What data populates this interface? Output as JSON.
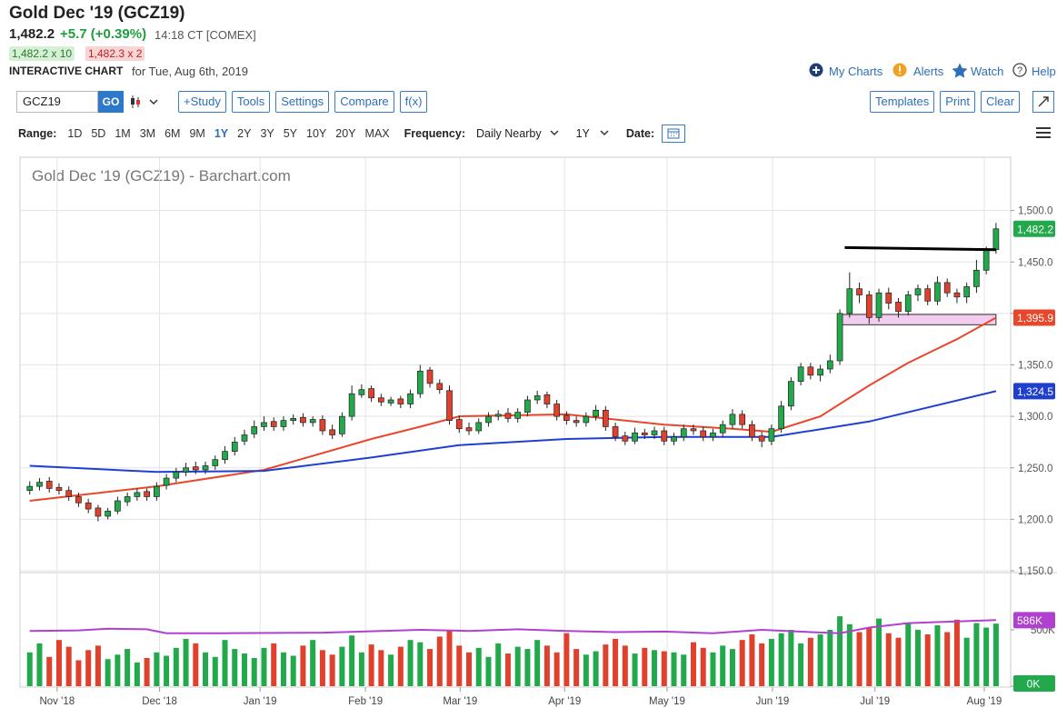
{
  "header": {
    "title": "Gold Dec '19 (GCZ19)",
    "last": "1,482.2",
    "change": "+5.7 (+0.39%)",
    "time": "14:18 CT [COMEX]",
    "bid": "1,482.2 x 10",
    "ask": "1,482.3 x 2",
    "chart_label": "INTERACTIVE CHART",
    "date": "for Tue, Aug 6th, 2019",
    "links": [
      "My Charts",
      "Alerts",
      "Watch",
      "Help"
    ]
  },
  "toolbar": {
    "symbol": "GCZ19",
    "go": "GO",
    "buttons": [
      "+Study",
      "Tools",
      "Settings",
      "Compare",
      "f(x)"
    ],
    "right_buttons": [
      "Templates",
      "Print",
      "Clear"
    ]
  },
  "range_bar": {
    "range_label": "Range:",
    "ranges": [
      "1D",
      "5D",
      "1M",
      "3M",
      "6M",
      "9M",
      "1Y",
      "2Y",
      "3Y",
      "5Y",
      "10Y",
      "20Y",
      "MAX"
    ],
    "active_range": 6,
    "frequency_label": "Frequency:",
    "frequency": "Daily Nearby",
    "period": "1Y",
    "date_label": "Date:"
  },
  "chart_data": {
    "type": "candlestick",
    "title": "Gold Dec '19 (GCZ19) - Barchart.com",
    "up_color": "#22a94b",
    "down_color": "#e0412d",
    "xlim": [
      -1,
      100.5
    ],
    "xticks": [
      {
        "value": 2.8,
        "label": "Nov '18"
      },
      {
        "value": 13.3,
        "label": "Dec '18"
      },
      {
        "value": 23.6,
        "label": "Jan '19"
      },
      {
        "value": 34.4,
        "label": "Feb '19"
      },
      {
        "value": 44.1,
        "label": "Mar '19"
      },
      {
        "value": 54.8,
        "label": "Apr '19"
      },
      {
        "value": 65.3,
        "label": "May '19"
      },
      {
        "value": 76.1,
        "label": "Jun '19"
      },
      {
        "value": 86.6,
        "label": "Jul '19"
      },
      {
        "value": 97.8,
        "label": "Aug '19"
      }
    ],
    "ylim": [
      1150,
      1550
    ],
    "yticks": [
      {
        "value": 1150,
        "label": "1,150.0"
      },
      {
        "value": 1200,
        "label": "1,200.0"
      },
      {
        "value": 1250,
        "label": "1,250.0"
      },
      {
        "value": 1300,
        "label": "1,300.0"
      },
      {
        "value": 1350,
        "label": "1,350.0"
      },
      {
        "value": 1400,
        "label": "1,400.0"
      },
      {
        "value": 1450,
        "label": "1,450.0"
      },
      {
        "value": 1500,
        "label": "1,500.0"
      }
    ],
    "grid": true,
    "open": [
      1228,
      1232,
      1237,
      1231,
      1228,
      1222,
      1216,
      1211,
      1203,
      1208,
      1217,
      1222,
      1227,
      1222,
      1233,
      1240,
      1246,
      1251,
      1248,
      1252,
      1258,
      1266,
      1276,
      1283,
      1290,
      1295,
      1290,
      1296,
      1299,
      1294,
      1297,
      1287,
      1283,
      1300,
      1321,
      1327,
      1318,
      1313,
      1317,
      1312,
      1322,
      1345,
      1332,
      1325,
      1297,
      1289,
      1286,
      1294,
      1300,
      1303,
      1298,
      1304,
      1316,
      1321,
      1312,
      1301,
      1296,
      1294,
      1300,
      1306,
      1290,
      1281,
      1276,
      1284,
      1282,
      1286,
      1276,
      1280,
      1288,
      1286,
      1280,
      1284,
      1292,
      1302,
      1292,
      1281,
      1276,
      1288,
      1310,
      1334,
      1348,
      1340,
      1346,
      1354,
      1400,
      1424,
      1418,
      1396,
      1420,
      1411,
      1402,
      1418,
      1424,
      1412,
      1430,
      1420,
      1416,
      1426,
      1442,
      1462
    ],
    "high": [
      1237,
      1240,
      1241,
      1235,
      1232,
      1226,
      1220,
      1214,
      1211,
      1222,
      1226,
      1230,
      1230,
      1236,
      1244,
      1250,
      1255,
      1256,
      1256,
      1262,
      1271,
      1280,
      1287,
      1296,
      1300,
      1299,
      1300,
      1302,
      1303,
      1300,
      1301,
      1292,
      1304,
      1330,
      1331,
      1330,
      1322,
      1319,
      1320,
      1326,
      1350,
      1348,
      1336,
      1330,
      1301,
      1294,
      1298,
      1304,
      1306,
      1308,
      1308,
      1320,
      1325,
      1324,
      1316,
      1305,
      1300,
      1304,
      1311,
      1310,
      1294,
      1285,
      1289,
      1288,
      1290,
      1290,
      1284,
      1292,
      1292,
      1290,
      1288,
      1296,
      1307,
      1306,
      1296,
      1285,
      1292,
      1315,
      1338,
      1352,
      1352,
      1350,
      1360,
      1404,
      1440,
      1430,
      1422,
      1424,
      1425,
      1415,
      1422,
      1428,
      1428,
      1436,
      1434,
      1424,
      1430,
      1452,
      1465,
      1488
    ],
    "low": [
      1224,
      1228,
      1226,
      1224,
      1218,
      1212,
      1206,
      1198,
      1200,
      1205,
      1213,
      1218,
      1218,
      1218,
      1229,
      1236,
      1242,
      1244,
      1244,
      1248,
      1254,
      1262,
      1272,
      1279,
      1286,
      1286,
      1286,
      1292,
      1290,
      1290,
      1282,
      1278,
      1280,
      1296,
      1318,
      1314,
      1310,
      1310,
      1308,
      1308,
      1318,
      1328,
      1322,
      1292,
      1284,
      1282,
      1283,
      1290,
      1296,
      1294,
      1294,
      1300,
      1312,
      1308,
      1296,
      1292,
      1290,
      1290,
      1296,
      1286,
      1276,
      1272,
      1273,
      1278,
      1278,
      1272,
      1272,
      1276,
      1282,
      1276,
      1276,
      1280,
      1288,
      1288,
      1276,
      1270,
      1272,
      1284,
      1306,
      1330,
      1336,
      1334,
      1342,
      1350,
      1396,
      1410,
      1390,
      1392,
      1404,
      1396,
      1398,
      1412,
      1408,
      1408,
      1416,
      1410,
      1410,
      1420,
      1438,
      1458
    ],
    "close": [
      1232,
      1236,
      1230,
      1228,
      1222,
      1216,
      1210,
      1203,
      1208,
      1218,
      1222,
      1226,
      1222,
      1232,
      1240,
      1246,
      1250,
      1248,
      1252,
      1258,
      1266,
      1275,
      1282,
      1290,
      1294,
      1290,
      1296,
      1298,
      1294,
      1297,
      1286,
      1282,
      1300,
      1322,
      1326,
      1318,
      1314,
      1316,
      1312,
      1322,
      1344,
      1332,
      1326,
      1296,
      1288,
      1286,
      1294,
      1300,
      1302,
      1298,
      1304,
      1316,
      1320,
      1312,
      1300,
      1296,
      1294,
      1300,
      1306,
      1290,
      1280,
      1276,
      1284,
      1282,
      1286,
      1276,
      1280,
      1288,
      1286,
      1280,
      1284,
      1292,
      1302,
      1292,
      1280,
      1276,
      1288,
      1310,
      1334,
      1348,
      1340,
      1346,
      1354,
      1400,
      1424,
      1418,
      1396,
      1420,
      1410,
      1402,
      1418,
      1424,
      1412,
      1430,
      1420,
      1416,
      1426,
      1442,
      1462,
      1482.2
    ],
    "close_label": "1,482.2",
    "overlays": [
      {
        "color": "#e8472b",
        "x": [
          0,
          13,
          24,
          35,
          40,
          44,
          55,
          65,
          72,
          76,
          81,
          86,
          90,
          95,
          99
        ],
        "values": [
          1218,
          1232,
          1248,
          1278,
          1290,
          1300,
          1302,
          1292,
          1288,
          1285,
          1300,
          1330,
          1352,
          1375,
          1395.9
        ],
        "value_label": "1,395.9"
      },
      {
        "color": "#1f3fd1",
        "x": [
          0,
          13,
          24,
          35,
          44,
          55,
          65,
          76,
          86,
          99
        ],
        "values": [
          1252,
          1246,
          1247,
          1260,
          1272,
          1278,
          1280,
          1280,
          1295,
          1324.5
        ],
        "value_label": "1,324.5"
      }
    ],
    "trend_line": {
      "color": "#000000",
      "x": [
        83.5,
        99
      ],
      "values": [
        1464,
        1462
      ]
    },
    "zone": {
      "color": "#f3cdf0",
      "x": [
        83,
        99
      ],
      "values": [
        1389,
        1399
      ]
    },
    "volume": {
      "ylim": [
        0,
        1000000
      ],
      "yticks": [
        {
          "value": 0,
          "label": "0K"
        },
        {
          "value": 500000,
          "label": "500K"
        }
      ],
      "values": [
        300000,
        380000,
        260000,
        410000,
        350000,
        230000,
        320000,
        360000,
        240000,
        280000,
        330000,
        210000,
        250000,
        300000,
        270000,
        340000,
        420000,
        380000,
        300000,
        260000,
        410000,
        330000,
        290000,
        250000,
        340000,
        380000,
        300000,
        270000,
        360000,
        410000,
        320000,
        280000,
        350000,
        450000,
        300000,
        370000,
        320000,
        280000,
        350000,
        410000,
        390000,
        330000,
        440000,
        500000,
        360000,
        300000,
        340000,
        260000,
        380000,
        290000,
        350000,
        330000,
        410000,
        360000,
        300000,
        470000,
        330000,
        280000,
        310000,
        370000,
        420000,
        360000,
        290000,
        340000,
        320000,
        310000,
        300000,
        280000,
        390000,
        340000,
        300000,
        360000,
        330000,
        410000,
        460000,
        380000,
        420000,
        470000,
        500000,
        380000,
        430000,
        460000,
        500000,
        620000,
        550000,
        480000,
        520000,
        600000,
        470000,
        430000,
        560000,
        500000,
        460000,
        540000,
        480000,
        590000,
        430000,
        560000,
        520000,
        555000
      ],
      "average": {
        "color": "#b040d0",
        "x": [
          0,
          5,
          8,
          12,
          14,
          20,
          30,
          40,
          45,
          50,
          55,
          60,
          65,
          70,
          75,
          80,
          83,
          86,
          90,
          95,
          99
        ],
        "values": [
          490000,
          495000,
          510000,
          505000,
          470000,
          470000,
          475000,
          500000,
          490000,
          505000,
          490000,
          480000,
          485000,
          470000,
          500000,
          480000,
          470000,
          520000,
          560000,
          575000,
          586000
        ],
        "value_label": "586K"
      }
    }
  }
}
